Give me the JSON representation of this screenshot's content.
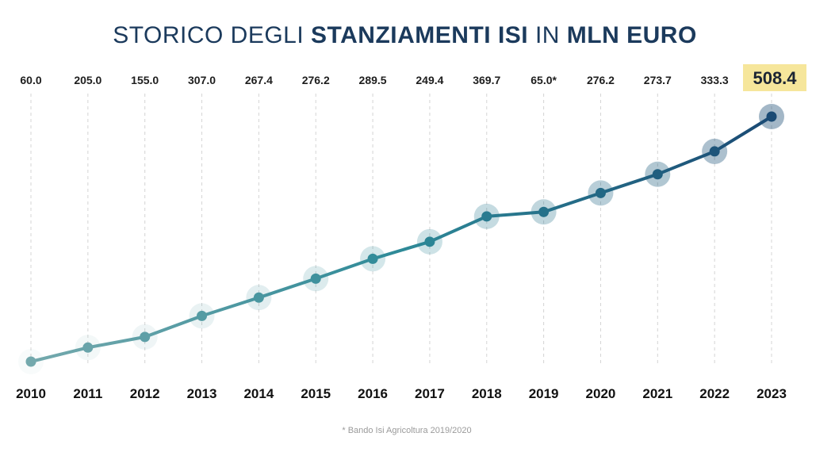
{
  "header": {
    "title_part1": "STORICO DEGLI ",
    "title_part2": "STANZIAMENTI ISI",
    "title_part3": " IN ",
    "title_part4": "MLN EURO"
  },
  "footnote": "* Bando Isi Agricoltura 2019/2020",
  "colors": {
    "title": "#1b3a5c",
    "line_start": "#74a9ad",
    "line_mid": "#2e8a98",
    "line_end": "#1a4a74",
    "highlight": "#f6e69b"
  },
  "chart_data": {
    "type": "line",
    "title": "STORICO DEGLI STANZIAMENTI ISI IN MLN EURO",
    "x": [
      "2010",
      "2011",
      "2012",
      "2013",
      "2014",
      "2015",
      "2016",
      "2017",
      "2018",
      "2019",
      "2020",
      "2021",
      "2022",
      "2023"
    ],
    "value_labels": [
      "60.0",
      "205.0",
      "155.0",
      "307.0",
      "267.4",
      "276.2",
      "289.5",
      "249.4",
      "369.7",
      "65.0*",
      "276.2",
      "273.7",
      "333.3",
      "508.4"
    ],
    "cumulative": [
      60.0,
      265.0,
      420.0,
      727.0,
      994.4,
      1270.6,
      1560.1,
      1809.5,
      2179.2,
      2244.2,
      2520.4,
      2794.1,
      3127.4,
      3635.8
    ],
    "highlighted_index": 13,
    "grid": "vertical-dashed"
  }
}
